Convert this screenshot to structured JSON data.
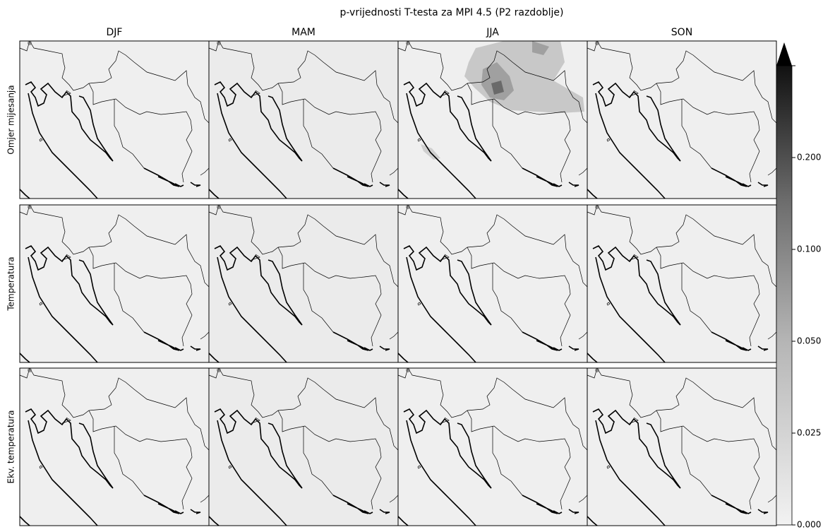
{
  "title": "p-vrijednosti T-testa za MPI 4.5 (P2 razdoblje)",
  "columns": [
    "DJF",
    "MAM",
    "JJA",
    "SON"
  ],
  "rows": [
    "Omjer mijesanja",
    "Temperatura",
    "Ekv. temperatura"
  ],
  "colorbar": {
    "ticks": [
      {
        "value": 0,
        "label": "0.000"
      },
      {
        "value": 0.025,
        "label": "0.025"
      },
      {
        "value": 0.05,
        "label": "0.050"
      },
      {
        "value": 0.1,
        "label": "0.100"
      },
      {
        "value": 0.2,
        "label": "0.200"
      }
    ]
  }
}
